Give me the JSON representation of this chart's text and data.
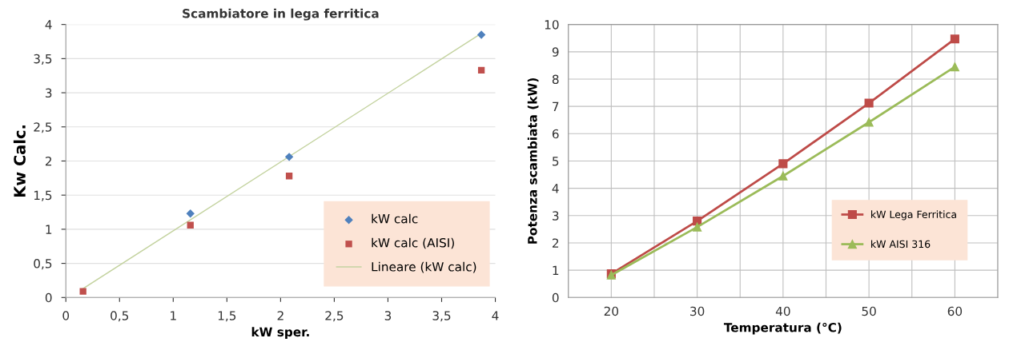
{
  "chart_data": [
    {
      "type": "scatter",
      "title": "Scambiatore in lega ferritica",
      "xlabel": "kW sper.",
      "ylabel": "Kw Calc.",
      "x": [
        0.16,
        1.16,
        2.08,
        3.87
      ],
      "series": [
        {
          "name": "kW calc",
          "color": "#4f81bd",
          "marker": "diamond",
          "values": [
            null,
            1.23,
            2.06,
            3.85
          ]
        },
        {
          "name": "kW calc (AISI)",
          "color": "#c0504d",
          "marker": "square",
          "values": [
            0.09,
            1.06,
            1.78,
            3.33
          ]
        },
        {
          "name": "Lineare (kW calc)",
          "type": "line",
          "color": "#c4d3a0",
          "marker": "none",
          "x": [
            0.16,
            3.87
          ],
          "values": [
            0.13,
            3.87
          ]
        }
      ],
      "xlim": [
        0,
        4
      ],
      "xticks": [
        0,
        {
          "value": 0.5,
          "label": "0,5"
        },
        1,
        {
          "value": 1.5,
          "label": "1,5"
        },
        2,
        {
          "value": 2.5,
          "label": "2,5"
        },
        3,
        {
          "value": 3.5,
          "label": "3,5"
        },
        4
      ],
      "ylim": [
        0,
        4
      ],
      "yticks": [
        0,
        {
          "value": 0.5,
          "label": "0,5"
        },
        1,
        {
          "value": 1.5,
          "label": "1,5"
        },
        2,
        {
          "value": 2.5,
          "label": "2,5"
        },
        3,
        {
          "value": 3.5,
          "label": "3,5"
        },
        4
      ],
      "grid": "y",
      "legend": "bottom right"
    },
    {
      "type": "line",
      "xlabel": "Temperatura (°C)",
      "ylabel": "Potenza scambiata (kW)",
      "x": [
        20,
        30,
        40,
        50,
        60
      ],
      "series": [
        {
          "name": "kW Lega Ferritica",
          "color": "#be4b48",
          "marker": "square",
          "values": [
            0.87,
            2.8,
            4.9,
            7.12,
            9.47
          ]
        },
        {
          "name": "kW AISI 316",
          "color": "#9bbb59",
          "marker": "triangle",
          "values": [
            0.82,
            2.58,
            4.45,
            6.42,
            8.45
          ]
        }
      ],
      "xlim": [
        15,
        65
      ],
      "xticks": [
        {
          "value": 15,
          "label": null
        },
        20,
        {
          "value": 25,
          "label": null
        },
        30,
        {
          "value": 35,
          "label": null
        },
        40,
        {
          "value": 45,
          "label": null
        },
        50,
        {
          "value": 55,
          "label": null
        },
        60,
        {
          "value": 65,
          "label": null
        }
      ],
      "ylim": [
        0,
        10
      ],
      "yticks": [
        0,
        1,
        2,
        3,
        4,
        5,
        6,
        7,
        8,
        9,
        10
      ],
      "grid": true,
      "legend": "bottom right"
    }
  ]
}
